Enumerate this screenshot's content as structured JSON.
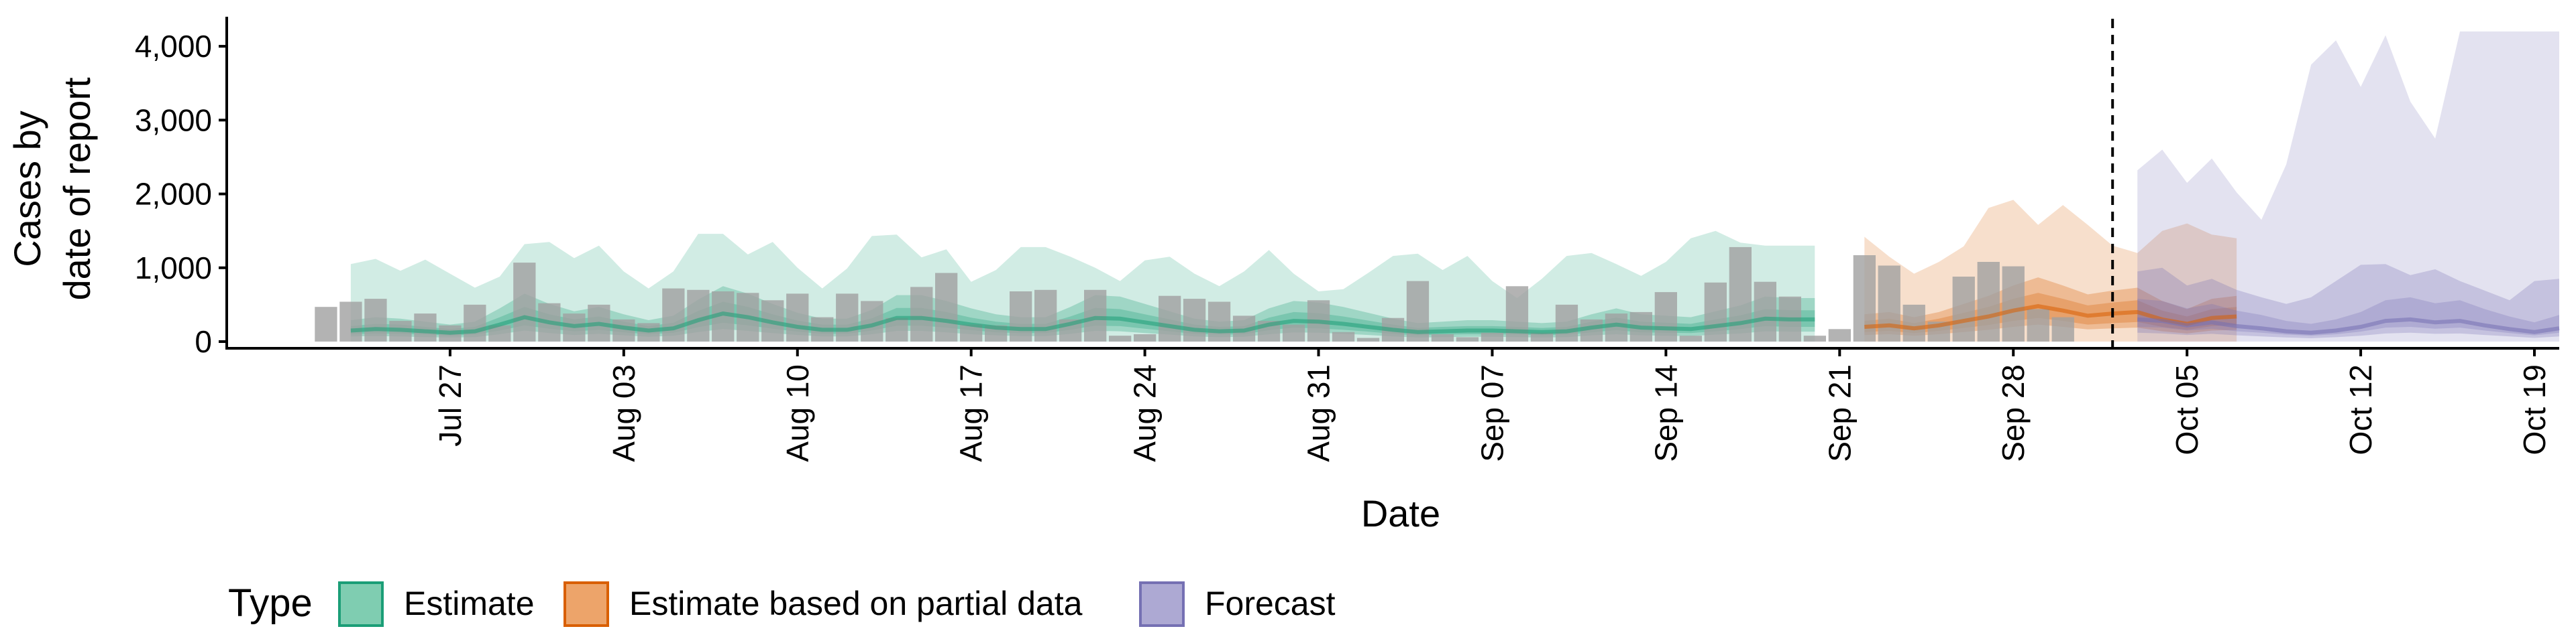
{
  "chart_data": {
    "type": "area",
    "xlabel": "Date",
    "ylabel_lines": [
      "Cases by",
      "date of report"
    ],
    "ylim": [
      0,
      4400
    ],
    "y_ticks": [
      0,
      1000,
      2000,
      3000,
      4000
    ],
    "y_tick_labels": [
      "0",
      "1,000",
      "2,000",
      "3,000",
      "4,000"
    ],
    "x_range": [
      "2020-07-18",
      "2020-10-20"
    ],
    "x_ticks": [
      "2020-07-27",
      "2020-08-03",
      "2020-08-10",
      "2020-08-17",
      "2020-08-24",
      "2020-08-31",
      "2020-09-07",
      "2020-09-14",
      "2020-09-21",
      "2020-09-28",
      "2020-10-05",
      "2020-10-12",
      "2020-10-19"
    ],
    "x_tick_labels": [
      "Jul 27",
      "Aug 03",
      "Aug 10",
      "Aug 17",
      "Aug 24",
      "Aug 31",
      "Sep 07",
      "Sep 14",
      "Sep 21",
      "Sep 28",
      "Oct 05",
      "Oct 12",
      "Oct 19"
    ],
    "forecast_date": "2020-10-02",
    "grid": false,
    "legend": {
      "position": "bottom",
      "title": "Type",
      "items": [
        {
          "label": "Estimate",
          "fill": "#7fcdb1",
          "stroke": "#1b9e77"
        },
        {
          "label": "Estimate based on partial data",
          "fill": "#eda46a",
          "stroke": "#d95f02"
        },
        {
          "label": "Forecast",
          "fill": "#ada9d3",
          "stroke": "#7570b3"
        }
      ]
    },
    "colors": {
      "Estimate": "#1b9e77",
      "Estimate based on partial data": "#d95f02",
      "Forecast": "#7570b3",
      "bars": "#a0a0a0"
    },
    "reported_cases": {
      "start_date": "2020-07-22",
      "values": [
        470,
        540,
        580,
        280,
        380,
        220,
        500,
        220,
        1070,
        520,
        380,
        500,
        300,
        250,
        720,
        700,
        680,
        660,
        560,
        650,
        330,
        650,
        550,
        320,
        740,
        930,
        230,
        220,
        680,
        700,
        300,
        700,
        80,
        100,
        620,
        580,
        540,
        350,
        280,
        230,
        560,
        130,
        50,
        320,
        820,
        100,
        60,
        120,
        750,
        120,
        500,
        300,
        380,
        400,
        670,
        80,
        800,
        1280,
        810,
        610,
        80,
        170,
        1170,
        1030,
        500,
        270,
        880,
        1080,
        1020,
        440,
        330
      ]
    },
    "series": [
      {
        "name": "Estimate",
        "start_date": "2020-07-23",
        "median": [
          150,
          170,
          160,
          140,
          120,
          140,
          230,
          330,
          260,
          210,
          240,
          190,
          150,
          180,
          290,
          380,
          330,
          260,
          200,
          160,
          160,
          220,
          320,
          320,
          280,
          230,
          190,
          170,
          170,
          240,
          320,
          310,
          260,
          210,
          160,
          140,
          150,
          230,
          280,
          270,
          240,
          200,
          160,
          130,
          140,
          150,
          150,
          140,
          130,
          140,
          190,
          230,
          190,
          180,
          170,
          210,
          250,
          310,
          300,
          300
        ],
        "bands": [
          {
            "lower": [
              70,
              75,
              70,
              60,
              55,
              60,
              100,
              150,
              115,
              90,
              105,
              85,
              65,
              80,
              130,
              170,
              145,
              115,
              90,
              70,
              70,
              100,
              145,
              145,
              125,
              100,
              85,
              75,
              75,
              105,
              145,
              140,
              115,
              95,
              70,
              60,
              65,
              100,
              125,
              120,
              105,
              90,
              70,
              55,
              60,
              65,
              65,
              60,
              55,
              60,
              85,
              100,
              85,
              80,
              75,
              95,
              110,
              140,
              135,
              135
            ],
            "upper": [
              290,
              330,
              310,
              270,
              230,
              270,
              450,
              650,
              510,
              410,
              470,
              370,
              290,
              350,
              570,
              750,
              650,
              510,
              390,
              310,
              310,
              430,
              630,
              630,
              550,
              450,
              370,
              330,
              330,
              470,
              630,
              610,
              510,
              410,
              310,
              270,
              290,
              450,
              550,
              530,
              470,
              390,
              310,
              250,
              270,
              290,
              290,
              270,
              250,
              270,
              370,
              450,
              370,
              350,
              330,
              410,
              490,
              610,
              590,
              590
            ]
          },
          {
            "lower": [
              100,
              110,
              105,
              95,
              80,
              95,
              150,
              220,
              175,
              140,
              160,
              125,
              100,
              120,
              195,
              255,
              220,
              175,
              135,
              105,
              105,
              150,
              215,
              215,
              190,
              155,
              125,
              115,
              115,
              160,
              215,
              210,
              175,
              140,
              105,
              95,
              100,
              155,
              190,
              180,
              160,
              135,
              105,
              85,
              95,
              100,
              100,
              95,
              85,
              95,
              125,
              155,
              125,
              120,
              115,
              140,
              170,
              210,
              200,
              200
            ],
            "upper": [
              210,
              240,
              230,
              200,
              170,
              200,
              330,
              470,
              370,
              300,
              340,
              270,
              210,
              255,
              415,
              540,
              470,
              370,
              285,
              230,
              230,
              315,
              455,
              455,
              400,
              325,
              270,
              240,
              240,
              340,
              455,
              440,
              370,
              300,
              230,
              200,
              210,
              325,
              400,
              385,
              340,
              285,
              230,
              185,
              200,
              210,
              210,
              200,
              185,
              200,
              270,
              325,
              270,
              255,
              240,
              300,
              355,
              440,
              425,
              425
            ]
          },
          {
            "lower": [
              0,
              0,
              0,
              0,
              0,
              0,
              0,
              0,
              0,
              0,
              0,
              0,
              0,
              0,
              0,
              0,
              0,
              0,
              0,
              0,
              0,
              0,
              0,
              0,
              0,
              0,
              0,
              0,
              0,
              0,
              0,
              0,
              0,
              0,
              0,
              0,
              0,
              0,
              0,
              0,
              0,
              0,
              0,
              0,
              0,
              0,
              0,
              0,
              0,
              0,
              0,
              0,
              0,
              0,
              0,
              0,
              0,
              0,
              0,
              0
            ],
            "upper": [
              1050,
              1120,
              960,
              1110,
              920,
              730,
              880,
              1320,
              1350,
              1130,
              1300,
              950,
              720,
              950,
              1460,
              1460,
              1180,
              1350,
              1000,
              720,
              990,
              1430,
              1450,
              1140,
              1250,
              810,
              970,
              1280,
              1280,
              1150,
              1000,
              820,
              1100,
              1150,
              920,
              750,
              950,
              1240,
              920,
              680,
              710,
              930,
              1160,
              1190,
              970,
              1160,
              820,
              590,
              850,
              1160,
              1200,
              1050,
              890,
              1080,
              1400,
              1500,
              1340,
              1300,
              1300,
              1300
            ]
          }
        ]
      },
      {
        "name": "Estimate based on partial data",
        "start_date": "2020-09-22",
        "median": [
          200,
          220,
          180,
          220,
          280,
          340,
          420,
          480,
          420,
          350,
          380,
          400,
          300,
          240,
          320,
          340
        ],
        "bands": [
          {
            "lower": [
              90,
              100,
              80,
              100,
              130,
              160,
              200,
              230,
              200,
              165,
              180,
              190,
              140,
              110,
              150,
              160
            ],
            "upper": [
              370,
              400,
              330,
              400,
              510,
              620,
              760,
              870,
              760,
              640,
              690,
              730,
              550,
              440,
              580,
              620
            ]
          },
          {
            "lower": [
              130,
              145,
              115,
              145,
              185,
              225,
              280,
              320,
              280,
              230,
              250,
              265,
              200,
              160,
              210,
              225
            ],
            "upper": [
              280,
              310,
              250,
              310,
              390,
              470,
              580,
              660,
              580,
              490,
              530,
              560,
              420,
              340,
              440,
              470
            ]
          },
          {
            "lower": [
              0,
              0,
              0,
              0,
              0,
              0,
              0,
              0,
              0,
              0,
              0,
              0,
              0,
              0,
              0,
              0
            ],
            "upper": [
              1420,
              1150,
              920,
              1080,
              1290,
              1810,
              1920,
              1580,
              1850,
              1580,
              1300,
              1200,
              1500,
              1600,
              1450,
              1400
            ]
          }
        ]
      },
      {
        "name": "Forecast",
        "start_date": "2020-10-03",
        "median": [
          300,
          280,
          220,
          260,
          210,
          180,
          140,
          120,
          150,
          200,
          280,
          300,
          260,
          280,
          220,
          170,
          130,
          180
        ],
        "bands": [
          {
            "lower": [
              120,
              110,
              90,
              105,
              85,
              70,
              55,
              45,
              60,
              80,
              110,
              120,
              105,
              110,
              90,
              70,
              50,
              70
            ],
            "upper": [
              580,
              550,
              450,
              510,
              420,
              360,
              280,
              240,
              300,
              400,
              560,
              600,
              520,
              560,
              440,
              340,
              260,
              360
            ]
          },
          {
            "lower": [
              200,
              190,
              150,
              175,
              140,
              120,
              95,
              80,
              100,
              135,
              190,
              200,
              175,
              190,
              150,
              115,
              85,
              120
            ],
            "upper": [
              950,
              1000,
              760,
              850,
              700,
              600,
              510,
              600,
              820,
              1040,
              1050,
              900,
              980,
              820,
              690,
              560,
              820,
              850
            ]
          },
          {
            "lower": [
              0,
              0,
              0,
              0,
              0,
              0,
              0,
              0,
              0,
              0,
              0,
              0,
              0,
              0,
              0,
              0,
              0,
              0
            ],
            "upper": [
              2320,
              2600,
              2150,
              2480,
              2020,
              1650,
              2400,
              3750,
              4080,
              3450,
              4150,
              3250,
              2750,
              4200,
              4200,
              4200,
              4200,
              4200
            ]
          }
        ]
      }
    ]
  }
}
